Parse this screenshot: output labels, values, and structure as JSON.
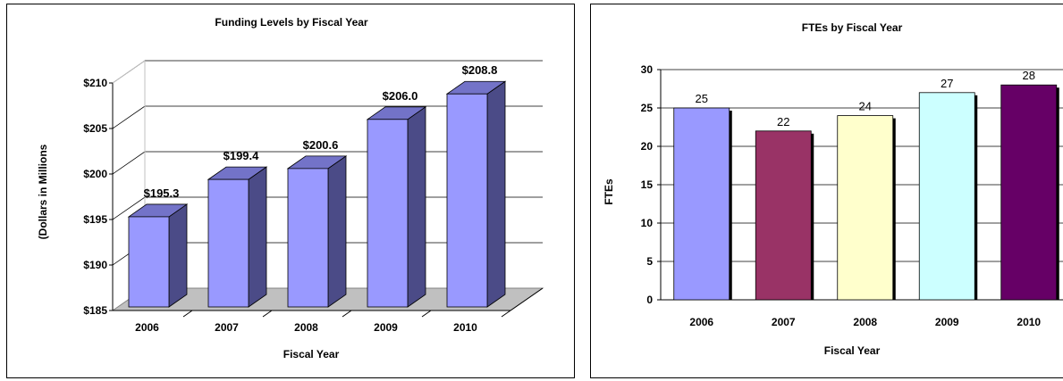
{
  "chart_data": [
    {
      "type": "bar",
      "title": "Funding Levels by Fiscal Year",
      "xlabel": "Fiscal Year",
      "ylabel": "(Dollars in Millions",
      "categories": [
        "2006",
        "2007",
        "2008",
        "2009",
        "2010"
      ],
      "values": [
        195.3,
        199.4,
        200.6,
        206.0,
        208.8
      ],
      "data_labels": [
        "$195.3",
        "$199.4",
        "$200.6",
        "$206.0",
        "$208.8"
      ],
      "yticks": [
        "$185",
        "$190",
        "$195",
        "$200",
        "$205",
        "$210"
      ],
      "ylim": [
        185,
        210
      ],
      "grid": true,
      "style": "3d",
      "colors": {
        "bar_front": "#9999ff",
        "bar_side": "#4b4b87",
        "bar_top": "#7373c8",
        "floor": "#c0c0c0"
      }
    },
    {
      "type": "bar",
      "title": "FTEs by Fiscal Year",
      "xlabel": "Fiscal Year",
      "ylabel": "FTEs",
      "categories": [
        "2006",
        "2007",
        "2008",
        "2009",
        "2010"
      ],
      "values": [
        25,
        22,
        24,
        27,
        28
      ],
      "data_labels": [
        "25",
        "22",
        "24",
        "27",
        "28"
      ],
      "yticks": [
        "0",
        "5",
        "10",
        "15",
        "20",
        "25",
        "30"
      ],
      "ylim": [
        0,
        30
      ],
      "grid": true,
      "colors": [
        "#9999ff",
        "#993366",
        "#ffffcc",
        "#ccffff",
        "#660066"
      ]
    }
  ]
}
